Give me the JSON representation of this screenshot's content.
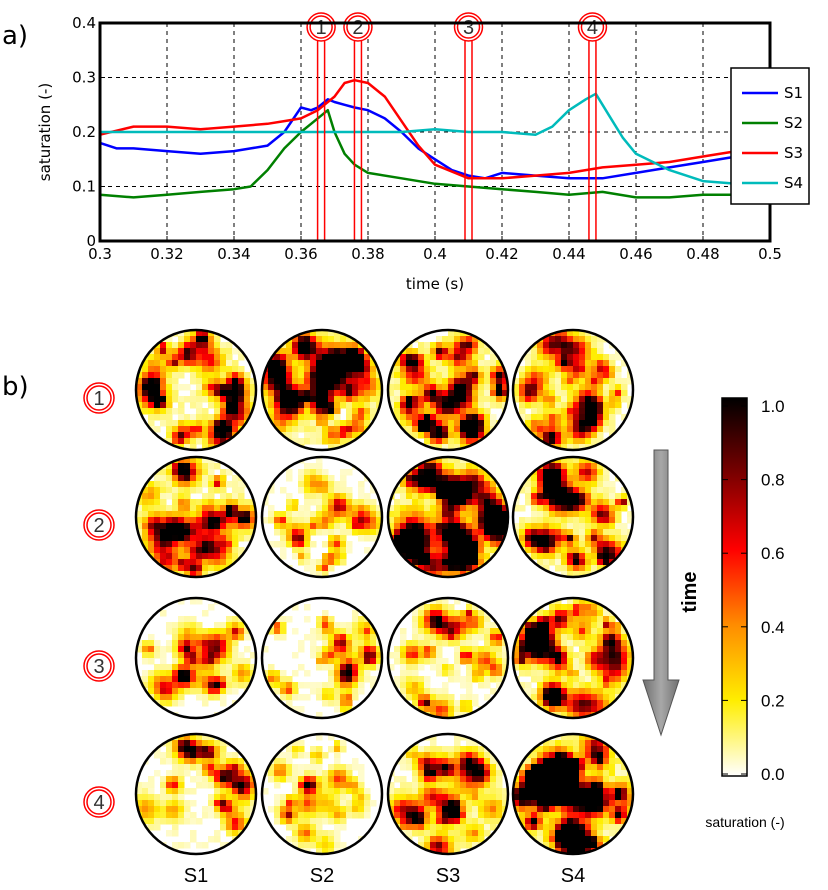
{
  "panel_a_label": "a)",
  "panel_b_label": "b)",
  "chart_data": {
    "type": "line",
    "xlabel": "time (s)",
    "ylabel": "saturation (-)",
    "xlim": [
      0.3,
      0.5
    ],
    "ylim": [
      0,
      0.4
    ],
    "xticks": [
      "0.3",
      "0.32",
      "0.34",
      "0.36",
      "0.38",
      "0.4",
      "0.42",
      "0.44",
      "0.46",
      "0.48",
      "0.5"
    ],
    "yticks": [
      "0",
      "0.1",
      "0.2",
      "0.3",
      "0.4"
    ],
    "grid": true,
    "legend_position": "right",
    "series": [
      {
        "name": "S1",
        "color": "#0000ff",
        "x": [
          0.3,
          0.305,
          0.31,
          0.32,
          0.33,
          0.34,
          0.345,
          0.35,
          0.355,
          0.36,
          0.363,
          0.365,
          0.368,
          0.37,
          0.373,
          0.376,
          0.38,
          0.385,
          0.39,
          0.395,
          0.4,
          0.405,
          0.41,
          0.415,
          0.42,
          0.43,
          0.44,
          0.45,
          0.46,
          0.47,
          0.48,
          0.49,
          0.5
        ],
        "y": [
          0.18,
          0.17,
          0.17,
          0.165,
          0.16,
          0.165,
          0.17,
          0.175,
          0.2,
          0.245,
          0.24,
          0.245,
          0.26,
          0.255,
          0.25,
          0.245,
          0.24,
          0.225,
          0.2,
          0.17,
          0.15,
          0.13,
          0.12,
          0.115,
          0.125,
          0.12,
          0.115,
          0.115,
          0.125,
          0.135,
          0.145,
          0.155,
          0.16
        ]
      },
      {
        "name": "S2",
        "color": "#008000",
        "x": [
          0.3,
          0.31,
          0.32,
          0.33,
          0.34,
          0.345,
          0.35,
          0.355,
          0.36,
          0.363,
          0.366,
          0.368,
          0.37,
          0.373,
          0.376,
          0.38,
          0.39,
          0.4,
          0.41,
          0.42,
          0.43,
          0.44,
          0.45,
          0.46,
          0.47,
          0.48,
          0.49,
          0.5
        ],
        "y": [
          0.085,
          0.08,
          0.085,
          0.09,
          0.095,
          0.1,
          0.13,
          0.17,
          0.2,
          0.215,
          0.23,
          0.24,
          0.2,
          0.16,
          0.14,
          0.125,
          0.115,
          0.105,
          0.1,
          0.095,
          0.09,
          0.085,
          0.09,
          0.08,
          0.08,
          0.085,
          0.085,
          0.085
        ]
      },
      {
        "name": "S3",
        "color": "#ff0000",
        "x": [
          0.3,
          0.31,
          0.32,
          0.33,
          0.34,
          0.35,
          0.355,
          0.36,
          0.365,
          0.37,
          0.373,
          0.376,
          0.38,
          0.385,
          0.39,
          0.395,
          0.4,
          0.41,
          0.42,
          0.43,
          0.44,
          0.45,
          0.46,
          0.47,
          0.48,
          0.49,
          0.5
        ],
        "y": [
          0.195,
          0.21,
          0.21,
          0.205,
          0.21,
          0.215,
          0.22,
          0.225,
          0.24,
          0.265,
          0.29,
          0.295,
          0.29,
          0.265,
          0.22,
          0.175,
          0.14,
          0.115,
          0.115,
          0.12,
          0.125,
          0.135,
          0.14,
          0.145,
          0.155,
          0.165,
          0.165
        ]
      },
      {
        "name": "S4",
        "color": "#00bbbb",
        "x": [
          0.3,
          0.31,
          0.32,
          0.33,
          0.34,
          0.35,
          0.36,
          0.37,
          0.38,
          0.39,
          0.4,
          0.41,
          0.42,
          0.43,
          0.435,
          0.44,
          0.445,
          0.448,
          0.452,
          0.456,
          0.46,
          0.47,
          0.48,
          0.49,
          0.5
        ],
        "y": [
          0.2,
          0.2,
          0.2,
          0.2,
          0.2,
          0.2,
          0.2,
          0.2,
          0.2,
          0.2,
          0.205,
          0.2,
          0.2,
          0.195,
          0.21,
          0.24,
          0.26,
          0.27,
          0.23,
          0.19,
          0.16,
          0.13,
          0.11,
          0.105,
          0.1
        ]
      }
    ],
    "markers": [
      {
        "label": "1",
        "t": 0.366
      },
      {
        "label": "2",
        "t": 0.377
      },
      {
        "label": "3",
        "t": 0.41
      },
      {
        "label": "4",
        "t": 0.447
      }
    ]
  },
  "panel_b": {
    "row_labels": [
      "1",
      "2",
      "3",
      "4"
    ],
    "column_labels": [
      "S1",
      "S2",
      "S3",
      "S4"
    ],
    "intensity": [
      [
        0.55,
        0.65,
        0.6,
        0.45
      ],
      [
        0.55,
        0.25,
        0.8,
        0.5
      ],
      [
        0.25,
        0.22,
        0.3,
        0.55
      ],
      [
        0.3,
        0.18,
        0.45,
        0.8
      ]
    ],
    "time_label": "time",
    "colorbar": {
      "ticks": [
        "1.0",
        "0.8",
        "0.6",
        "0.4",
        "0.2",
        "0.0"
      ],
      "title": "saturation (-)",
      "colors": [
        "#000000",
        "#800000",
        "#ff0000",
        "#ff9900",
        "#ffff00",
        "#ffffff"
      ]
    }
  }
}
